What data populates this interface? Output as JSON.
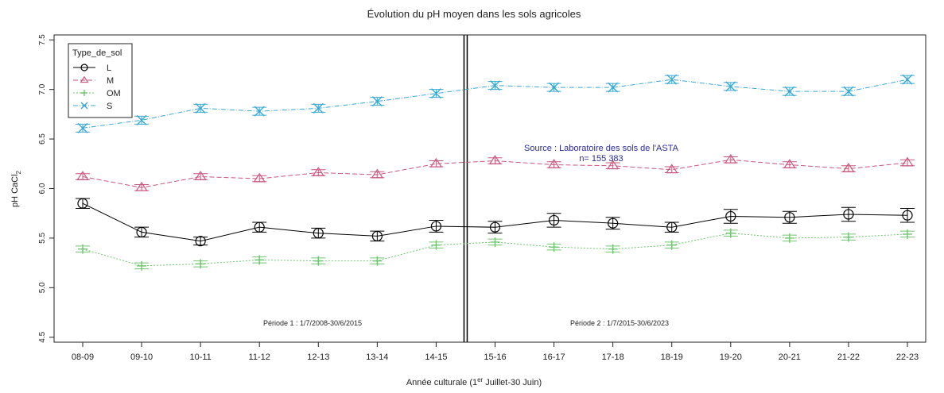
{
  "chart_data": {
    "type": "line",
    "title": "Évolution du pH moyen dans les sols agricoles",
    "xlabel_main": "Année culturale (1",
    "xlabel_sup": "er",
    "xlabel_rest": "Juillet-30 Juin)",
    "ylabel_main": "pH CaCl",
    "ylabel_sub": "2",
    "categories": [
      "08-09",
      "09-10",
      "10-11",
      "11-12",
      "12-13",
      "13-14",
      "14-15",
      "15-16",
      "16-17",
      "17-18",
      "18-19",
      "19-20",
      "20-21",
      "21-22",
      "22-23"
    ],
    "ylim": [
      4.45,
      7.55
    ],
    "yticks": [
      "4.5",
      "5.0",
      "5.5",
      "6.0",
      "6.5",
      "7.0",
      "7.5"
    ],
    "grid": false,
    "legend": {
      "title": "Type_de_sol",
      "position": "top-left"
    },
    "series": [
      {
        "name": "L",
        "color": "#000000",
        "dash": "solid",
        "marker": "circle",
        "values": [
          5.85,
          5.56,
          5.47,
          5.61,
          5.55,
          5.52,
          5.62,
          5.61,
          5.68,
          5.65,
          5.61,
          5.72,
          5.71,
          5.74,
          5.73
        ],
        "err": [
          0.05,
          0.05,
          0.04,
          0.05,
          0.05,
          0.05,
          0.06,
          0.06,
          0.07,
          0.06,
          0.05,
          0.07,
          0.06,
          0.07,
          0.07
        ]
      },
      {
        "name": "M",
        "color": "#c8567a",
        "dash": "dashed",
        "marker": "triangle",
        "values": [
          6.12,
          6.01,
          6.12,
          6.1,
          6.16,
          6.14,
          6.25,
          6.28,
          6.24,
          6.23,
          6.19,
          6.29,
          6.24,
          6.2,
          6.26
        ],
        "err": [
          0.03,
          0.03,
          0.03,
          0.03,
          0.03,
          0.03,
          0.03,
          0.03,
          0.03,
          0.03,
          0.03,
          0.03,
          0.03,
          0.03,
          0.03
        ]
      },
      {
        "name": "OM",
        "color": "#6fc46f",
        "dash": "dotted",
        "marker": "plus",
        "values": [
          5.39,
          5.22,
          5.24,
          5.28,
          5.27,
          5.27,
          5.43,
          5.46,
          5.41,
          5.39,
          5.43,
          5.55,
          5.5,
          5.51,
          5.54
        ],
        "err": [
          0.03,
          0.03,
          0.03,
          0.03,
          0.03,
          0.03,
          0.03,
          0.03,
          0.03,
          0.03,
          0.03,
          0.03,
          0.03,
          0.03,
          0.03
        ]
      },
      {
        "name": "S",
        "color": "#3aa8d0",
        "dash": "dashdot",
        "marker": "cross",
        "values": [
          6.61,
          6.69,
          6.81,
          6.78,
          6.81,
          6.88,
          6.96,
          7.04,
          7.02,
          7.02,
          7.1,
          7.03,
          6.98,
          6.98,
          7.1
        ],
        "err": [
          0.04,
          0.04,
          0.04,
          0.04,
          0.04,
          0.04,
          0.04,
          0.04,
          0.04,
          0.04,
          0.04,
          0.04,
          0.04,
          0.04,
          0.04
        ]
      }
    ],
    "divider_after_index": 6,
    "annotations": {
      "source_line1": "Source : Laboratoire des sols de l'ASTA",
      "source_line2": "n= 155 383",
      "period1": "Période  1 : 1/7/2008-30/6/2015",
      "period2": "Période  2 : 1/7/2015-30/6/2023"
    }
  }
}
